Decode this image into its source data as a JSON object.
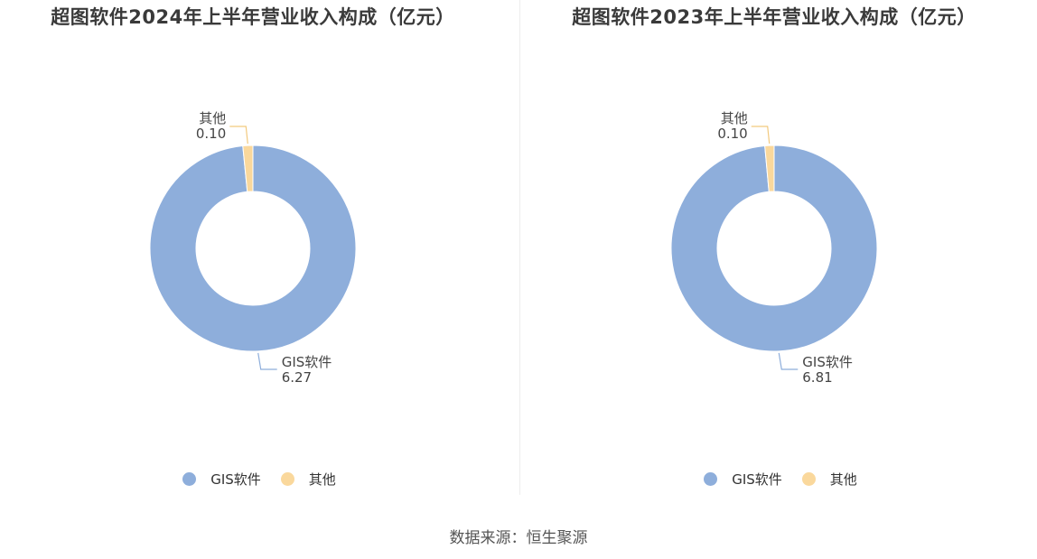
{
  "colors": {
    "gis": "#8eaedb",
    "other": "#fad89c",
    "leader_gis": "#8eaedb",
    "leader_other": "#f2c97e"
  },
  "chart_data": [
    {
      "type": "pie",
      "title": "超图软件2024年上半年营业收入构成（亿元）",
      "unit": "亿元",
      "donut": true,
      "slices": [
        {
          "label": "GIS软件",
          "value": 6.27,
          "display": "6.27",
          "color": "#8eaedb"
        },
        {
          "label": "其他",
          "value": 0.1,
          "display": "0.10",
          "color": "#fad89c"
        }
      ],
      "legend": [
        "GIS软件",
        "其他"
      ],
      "legend_position": "bottom"
    },
    {
      "type": "pie",
      "title": "超图软件2023年上半年营业收入构成（亿元）",
      "unit": "亿元",
      "donut": true,
      "slices": [
        {
          "label": "GIS软件",
          "value": 6.81,
          "display": "6.81",
          "color": "#8eaedb"
        },
        {
          "label": "其他",
          "value": 0.1,
          "display": "0.10",
          "color": "#fad89c"
        }
      ],
      "legend": [
        "GIS软件",
        "其他"
      ],
      "legend_position": "bottom"
    }
  ],
  "source": "数据来源：恒生聚源"
}
